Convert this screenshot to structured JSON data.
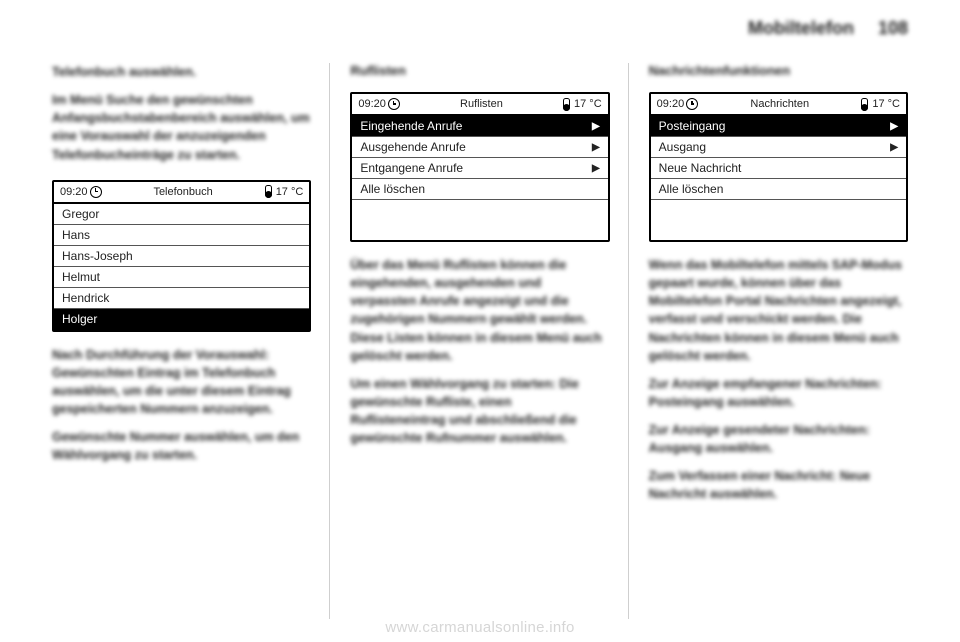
{
  "header": {
    "section_title": "Mobiltelefon",
    "page_number": "108"
  },
  "column1": {
    "para1_bold": "Telefonbuch auswählen.",
    "para2": "Im Menü Suche den gewünschten Anfangsbuchstabenbereich auswählen, um eine Vorauswahl der anzuzeigenden Telefonbucheinträge zu starten.",
    "device": {
      "time": "09:20",
      "title": "Telefonbuch",
      "temp": "17 °C",
      "rows": [
        {
          "label": "Gregor",
          "highlighted": false
        },
        {
          "label": "Hans",
          "highlighted": false
        },
        {
          "label": "Hans-Joseph",
          "highlighted": false
        },
        {
          "label": "Helmut",
          "highlighted": false
        },
        {
          "label": "Hendrick",
          "highlighted": false
        },
        {
          "label": "Holger",
          "highlighted": true
        }
      ]
    },
    "para3": "Nach Durchführung der Vorauswahl: Gewünschten Eintrag im Telefonbuch auswählen, um die unter diesem Eintrag gespeicherten Nummern anzuzeigen.",
    "para4": "Gewünschte Nummer auswählen, um den Wählvorgang zu starten."
  },
  "column2": {
    "heading": "Ruflisten",
    "device": {
      "time": "09:20",
      "title": "Ruflisten",
      "temp": "17 °C",
      "rows": [
        {
          "label": "Eingehende Anrufe",
          "highlighted": true,
          "chevron": true
        },
        {
          "label": "Ausgehende Anrufe",
          "highlighted": false,
          "chevron": true
        },
        {
          "label": "Entgangene Anrufe",
          "highlighted": false,
          "chevron": true
        },
        {
          "label": "Alle löschen",
          "highlighted": false,
          "chevron": false
        }
      ]
    },
    "para1": "Über das Menü Ruflisten können die eingehenden, ausgehenden und verpassten Anrufe angezeigt und die zugehörigen Nummern gewählt werden. Diese Listen können in diesem Menü auch gelöscht werden.",
    "para2": "Um einen Wählvorgang zu starten: Die gewünschte Rufliste, einen Ruflisteneintrag und abschließend die gewünschte Rufnummer auswählen."
  },
  "column3": {
    "heading": "Nachrichtenfunktionen",
    "device": {
      "time": "09:20",
      "title": "Nachrichten",
      "temp": "17 °C",
      "rows": [
        {
          "label": "Posteingang",
          "highlighted": true,
          "chevron": true
        },
        {
          "label": "Ausgang",
          "highlighted": false,
          "chevron": true
        },
        {
          "label": "Neue Nachricht",
          "highlighted": false,
          "chevron": false
        },
        {
          "label": "Alle löschen",
          "highlighted": false,
          "chevron": false
        }
      ]
    },
    "para1": "Wenn das Mobiltelefon mittels SAP-Modus gepaart wurde, können über das Mobiltelefon Portal Nachrichten angezeigt, verfasst und verschickt werden. Die Nachrichten können in diesem Menü auch gelöscht werden.",
    "para2": "Zur Anzeige empfangener Nachrichten: Posteingang auswählen.",
    "para3": "Zur Anzeige gesendeter Nachrichten: Ausgang auswählen.",
    "para4": "Zum Verfassen einer Nachricht: Neue Nachricht auswählen."
  },
  "watermark": "www.carmanualsonline.info"
}
